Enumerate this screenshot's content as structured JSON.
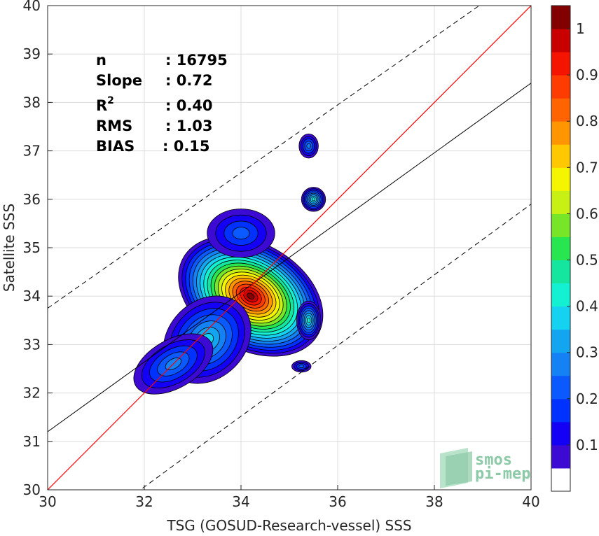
{
  "chart_data": {
    "type": "heatmap",
    "subtype": "scatter-density contour",
    "xlabel": "TSG (GOSUD-Research-vessel) SSS",
    "ylabel": "Satellite SSS",
    "xlim": [
      30,
      40
    ],
    "ylim": [
      30,
      40
    ],
    "x_ticks": [
      "30",
      "32",
      "34",
      "36",
      "38",
      "40"
    ],
    "y_ticks": [
      "30",
      "31",
      "32",
      "33",
      "34",
      "35",
      "36",
      "37",
      "38",
      "39",
      "40"
    ],
    "grid": true,
    "colorbar": {
      "ticks": [
        "0.1",
        "0.2",
        "0.3",
        "0.4",
        "0.5",
        "0.6",
        "0.7",
        "0.8",
        "0.9",
        "1"
      ],
      "levels": [
        0.05,
        0.1,
        0.15,
        0.2,
        0.25,
        0.3,
        0.35,
        0.4,
        0.45,
        0.5,
        0.55,
        0.6,
        0.65,
        0.7,
        0.75,
        0.8,
        0.85,
        0.9,
        0.95,
        1.0
      ],
      "colors": [
        "#5a00a8",
        "#3c0ad2",
        "#1400f5",
        "#0032ff",
        "#0a5aff",
        "#1482f5",
        "#14a5f0",
        "#14d2f0",
        "#14f0d2",
        "#14e6a0",
        "#28e650",
        "#78e628",
        "#c8f014",
        "#f5f500",
        "#ffc800",
        "#ff9600",
        "#ff6400",
        "#ff3c00",
        "#f51400",
        "#c80000",
        "#820000"
      ]
    },
    "stats": [
      {
        "label": "n",
        "value": ": 16795"
      },
      {
        "label": "Slope",
        "value": ": 0.72"
      },
      {
        "label": "R2",
        "value": ": 0.40"
      },
      {
        "label": "RMS",
        "value": ": 1.03"
      },
      {
        "label": "BIAS",
        "value": ": 0.15"
      }
    ],
    "lines": {
      "one_to_one": {
        "x": [
          30,
          40
        ],
        "y": [
          30,
          40
        ],
        "color": "#ff0000"
      },
      "fit": {
        "x": [
          30,
          40
        ],
        "y": [
          31.2,
          38.4
        ],
        "color": "#000000"
      },
      "upper_dashed": {
        "x": [
          30,
          40
        ],
        "y": [
          33.75,
          40.75
        ],
        "color": "#000000"
      },
      "lower_dashed": {
        "x": [
          30,
          40
        ],
        "y": [
          28.6,
          35.9
        ],
        "color": "#000000"
      }
    },
    "density_blobs": [
      {
        "cx": 34.2,
        "cy": 34.0,
        "rx": 1.1,
        "ry": 1.6,
        "angle": -60,
        "peak": 1.0
      },
      {
        "cx": 33.3,
        "cy": 33.1,
        "rx": 1.0,
        "ry": 0.8,
        "angle": -45,
        "peak": 0.35
      },
      {
        "cx": 32.6,
        "cy": 32.6,
        "rx": 0.9,
        "ry": 0.5,
        "angle": -30,
        "peak": 0.25
      },
      {
        "cx": 34.0,
        "cy": 35.3,
        "rx": 0.7,
        "ry": 0.5,
        "angle": 0,
        "peak": 0.22
      },
      {
        "cx": 35.4,
        "cy": 37.1,
        "rx": 0.2,
        "ry": 0.25,
        "angle": 0,
        "peak": 0.28
      },
      {
        "cx": 35.5,
        "cy": 36.0,
        "rx": 0.25,
        "ry": 0.25,
        "angle": 0,
        "peak": 0.4
      },
      {
        "cx": 35.4,
        "cy": 33.5,
        "rx": 0.25,
        "ry": 0.4,
        "angle": 0,
        "peak": 0.4
      },
      {
        "cx": 35.25,
        "cy": 32.55,
        "rx": 0.2,
        "ry": 0.12,
        "angle": 0,
        "peak": 0.2
      }
    ]
  },
  "logo": {
    "line1": "smos",
    "line2": "pi-mep"
  }
}
